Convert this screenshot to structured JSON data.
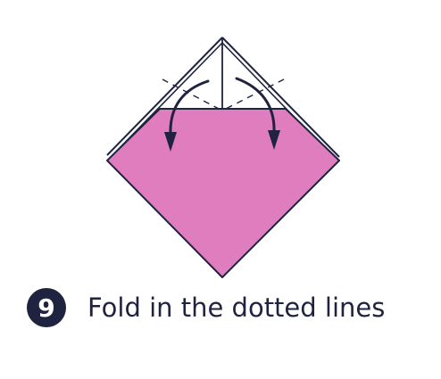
{
  "step": {
    "number": "9",
    "instruction": "Fold in the dotted lines"
  },
  "colors": {
    "paper_fill": "#e07dbf",
    "outline": "#1f2340",
    "badge_bg": "#1f2340",
    "badge_text": "#ffffff",
    "instruction_text": "#1f2340"
  },
  "icons": {
    "left_fold": "curved-arrow-down-icon",
    "right_fold": "curved-arrow-down-icon"
  }
}
